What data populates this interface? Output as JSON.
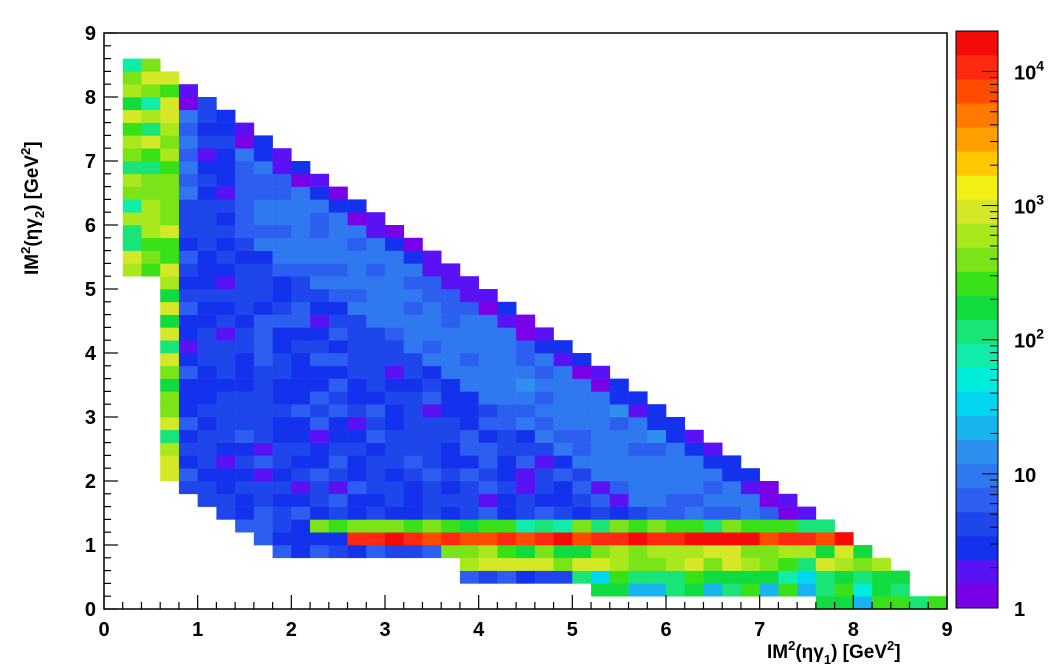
{
  "chart_data": {
    "type": "heatmap",
    "title": "",
    "xlabel": {
      "base": "IM",
      "sup": "2",
      "open": "(ηγ",
      "sub": "1",
      "close": ") [GeV",
      "sup2": "2",
      "end": "]"
    },
    "ylabel": {
      "base": "IM",
      "sup": "2",
      "open": "(ηγ",
      "sub": "2",
      "close": ") [GeV",
      "sup2": "2",
      "end": "]"
    },
    "xlim": [
      0,
      9
    ],
    "ylim": [
      0,
      9
    ],
    "x_tick_labels": [
      "0",
      "1",
      "2",
      "3",
      "4",
      "5",
      "6",
      "7",
      "8",
      "9"
    ],
    "y_tick_labels": [
      "0",
      "1",
      "2",
      "3",
      "4",
      "5",
      "6",
      "7",
      "8",
      "9"
    ],
    "bin_width": 0.2,
    "z_scale": "log",
    "zlim": [
      1,
      20000
    ],
    "colorbar_labels": [
      {
        "value": 1,
        "base": "1",
        "exp": ""
      },
      {
        "value": 10,
        "base": "10",
        "exp": ""
      },
      {
        "value": 100,
        "base": "10",
        "exp": "2"
      },
      {
        "value": 1000,
        "base": "10",
        "exp": "3"
      },
      {
        "value": 10000,
        "base": "10",
        "exp": "4"
      }
    ],
    "palette": [
      "#7a00e8",
      "#5a12f5",
      "#1432ee",
      "#1e46ea",
      "#2c5ff0",
      "#2f78f0",
      "#2e90ee",
      "#18b4ef",
      "#00d6f0",
      "#00eddc",
      "#10ecaa",
      "#18e478",
      "#10dc40",
      "#38e018",
      "#7ae418",
      "#a8e81c",
      "#d4e828",
      "#f2f014",
      "#ffc800",
      "#ffa000",
      "#ff7800",
      "#ff4c00",
      "#ff2810",
      "#f50a0a"
    ],
    "regions": {
      "kinematic_boundary_sum": 9.0,
      "kinematic_boundary_diag_bins": [
        8.9,
        8.7
      ],
      "vertical_band_red_x": [
        0.9,
        1.1
      ],
      "vertical_band_green_x": [
        0.2,
        0.9
      ],
      "vertical_band_low_x": [
        1.1,
        1.5
      ],
      "horizontal_band_red_y": [
        1.0,
        1.3
      ],
      "horizontal_band_green_y": [
        0.6,
        1.0
      ],
      "horizontal_band_top_y": [
        1.3,
        1.45
      ],
      "bottom_row_y": [
        0.0,
        0.35
      ],
      "interior_counts_typical": [
        2,
        8
      ],
      "edge_counts_typical": [
        1,
        3
      ],
      "red_band_counts": [
        8000,
        20000
      ]
    }
  }
}
